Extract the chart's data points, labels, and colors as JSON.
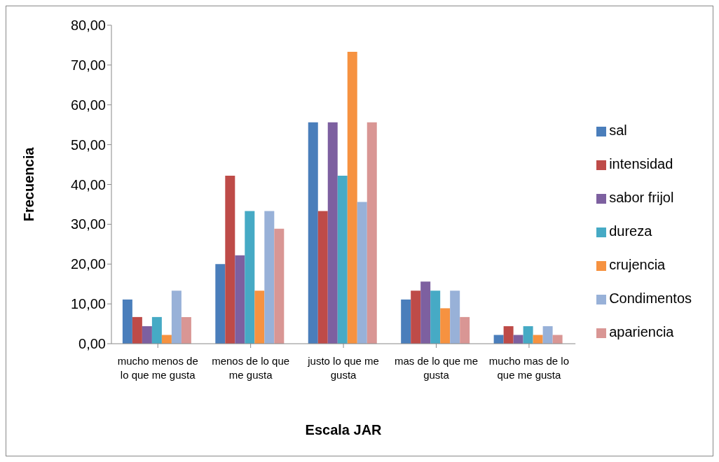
{
  "chart_data": {
    "type": "bar",
    "xlabel": "Escala JAR",
    "ylabel": "Frecuencia",
    "categories": [
      "mucho menos de lo que me gusta",
      "menos de lo que me gusta",
      "justo lo que me gusta",
      "mas de lo que me gusta",
      "mucho mas de lo que me gusta"
    ],
    "series": [
      {
        "name": "sal",
        "color": "#4a7ebb",
        "values": [
          11.1,
          20.0,
          55.6,
          11.1,
          2.2
        ]
      },
      {
        "name": "intensidad",
        "color": "#be4b48",
        "values": [
          6.7,
          42.2,
          33.3,
          13.3,
          4.4
        ]
      },
      {
        "name": "sabor frijol",
        "color": "#7d60a0",
        "values": [
          4.4,
          22.2,
          55.6,
          15.6,
          2.2
        ]
      },
      {
        "name": "dureza",
        "color": "#46aac5",
        "values": [
          6.7,
          33.3,
          42.2,
          13.3,
          4.4
        ]
      },
      {
        "name": "crujencia",
        "color": "#f69240",
        "values": [
          2.2,
          13.3,
          73.3,
          8.9,
          2.2
        ]
      },
      {
        "name": "Condimentos",
        "color": "#98b1d8",
        "values": [
          13.3,
          33.3,
          35.6,
          13.3,
          4.4
        ]
      },
      {
        "name": "apariencia",
        "color": "#d99694",
        "values": [
          6.7,
          28.9,
          55.6,
          6.7,
          2.2
        ]
      }
    ],
    "ylim": [
      0,
      80
    ],
    "yticks": [
      {
        "value": 0,
        "label": "0,00"
      },
      {
        "value": 10,
        "label": "10,00"
      },
      {
        "value": 20,
        "label": "20,00"
      },
      {
        "value": 30,
        "label": "30,00"
      },
      {
        "value": 40,
        "label": "40,00"
      },
      {
        "value": 50,
        "label": "50,00"
      },
      {
        "value": 60,
        "label": "60,00"
      },
      {
        "value": 70,
        "label": "70,00"
      },
      {
        "value": 80,
        "label": "80,00"
      }
    ],
    "legend": "right"
  }
}
